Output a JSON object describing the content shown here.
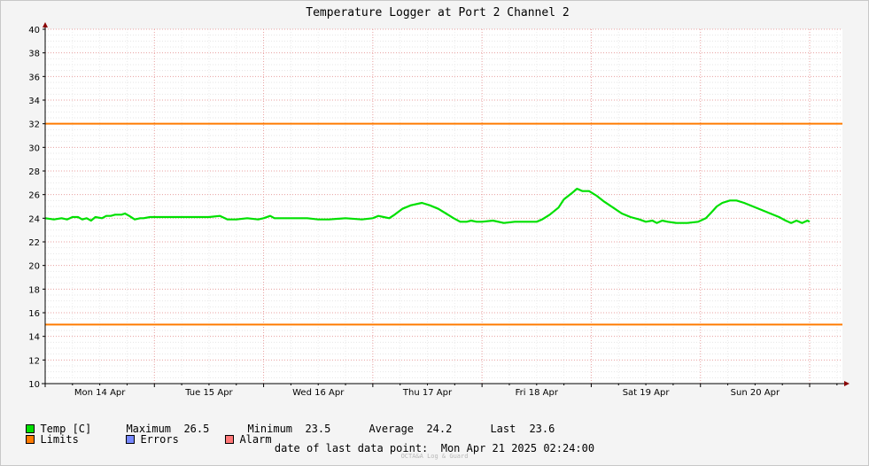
{
  "chart_data": {
    "type": "line",
    "title": "Temperature Logger at Port 2 Channel 2",
    "ylim": [
      10,
      40
    ],
    "yticks": [
      10,
      12,
      14,
      16,
      18,
      20,
      22,
      24,
      26,
      28,
      30,
      32,
      34,
      36,
      38,
      40
    ],
    "xlim": [
      0,
      7.3
    ],
    "day_labels": [
      "Mon 14 Apr",
      "Tue 15 Apr",
      "Wed 16 Apr",
      "Thu 17 Apr",
      "Fri 18 Apr",
      "Sat 19 Apr",
      "Sun 20 Apr"
    ],
    "series": [
      {
        "name": "Temp [C]",
        "color": "#00e000",
        "points": [
          [
            0.0,
            24.0
          ],
          [
            0.08,
            23.9
          ],
          [
            0.15,
            24.0
          ],
          [
            0.2,
            23.9
          ],
          [
            0.25,
            24.1
          ],
          [
            0.3,
            24.1
          ],
          [
            0.34,
            23.9
          ],
          [
            0.38,
            24.0
          ],
          [
            0.42,
            23.8
          ],
          [
            0.46,
            24.1
          ],
          [
            0.52,
            24.0
          ],
          [
            0.56,
            24.2
          ],
          [
            0.6,
            24.2
          ],
          [
            0.64,
            24.3
          ],
          [
            0.7,
            24.3
          ],
          [
            0.73,
            24.4
          ],
          [
            0.77,
            24.2
          ],
          [
            0.82,
            23.9
          ],
          [
            0.87,
            24.0
          ],
          [
            0.9,
            24.0
          ],
          [
            0.96,
            24.1
          ],
          [
            1.1,
            24.1
          ],
          [
            1.3,
            24.1
          ],
          [
            1.5,
            24.1
          ],
          [
            1.6,
            24.2
          ],
          [
            1.67,
            23.9
          ],
          [
            1.75,
            23.9
          ],
          [
            1.85,
            24.0
          ],
          [
            1.95,
            23.9
          ],
          [
            2.0,
            24.0
          ],
          [
            2.06,
            24.2
          ],
          [
            2.1,
            24.0
          ],
          [
            2.2,
            24.0
          ],
          [
            2.4,
            24.0
          ],
          [
            2.5,
            23.9
          ],
          [
            2.6,
            23.9
          ],
          [
            2.75,
            24.0
          ],
          [
            2.9,
            23.9
          ],
          [
            3.0,
            24.0
          ],
          [
            3.05,
            24.2
          ],
          [
            3.1,
            24.1
          ],
          [
            3.15,
            24.0
          ],
          [
            3.2,
            24.3
          ],
          [
            3.27,
            24.8
          ],
          [
            3.35,
            25.1
          ],
          [
            3.45,
            25.3
          ],
          [
            3.52,
            25.1
          ],
          [
            3.6,
            24.8
          ],
          [
            3.67,
            24.4
          ],
          [
            3.74,
            24.0
          ],
          [
            3.8,
            23.7
          ],
          [
            3.86,
            23.7
          ],
          [
            3.9,
            23.8
          ],
          [
            3.95,
            23.7
          ],
          [
            4.0,
            23.7
          ],
          [
            4.1,
            23.8
          ],
          [
            4.2,
            23.6
          ],
          [
            4.3,
            23.7
          ],
          [
            4.4,
            23.7
          ],
          [
            4.5,
            23.7
          ],
          [
            4.55,
            23.9
          ],
          [
            4.62,
            24.3
          ],
          [
            4.7,
            24.9
          ],
          [
            4.75,
            25.6
          ],
          [
            4.82,
            26.1
          ],
          [
            4.87,
            26.5
          ],
          [
            4.92,
            26.3
          ],
          [
            4.98,
            26.3
          ],
          [
            5.05,
            25.9
          ],
          [
            5.12,
            25.4
          ],
          [
            5.2,
            24.9
          ],
          [
            5.28,
            24.4
          ],
          [
            5.36,
            24.1
          ],
          [
            5.44,
            23.9
          ],
          [
            5.5,
            23.7
          ],
          [
            5.56,
            23.8
          ],
          [
            5.6,
            23.6
          ],
          [
            5.65,
            23.8
          ],
          [
            5.7,
            23.7
          ],
          [
            5.78,
            23.6
          ],
          [
            5.88,
            23.6
          ],
          [
            5.98,
            23.7
          ],
          [
            6.05,
            24.0
          ],
          [
            6.1,
            24.5
          ],
          [
            6.15,
            25.0
          ],
          [
            6.2,
            25.3
          ],
          [
            6.27,
            25.5
          ],
          [
            6.33,
            25.5
          ],
          [
            6.4,
            25.3
          ],
          [
            6.48,
            25.0
          ],
          [
            6.56,
            24.7
          ],
          [
            6.64,
            24.4
          ],
          [
            6.72,
            24.1
          ],
          [
            6.78,
            23.8
          ],
          [
            6.83,
            23.6
          ],
          [
            6.88,
            23.8
          ],
          [
            6.93,
            23.6
          ],
          [
            6.98,
            23.8
          ],
          [
            7.0,
            23.7
          ]
        ]
      },
      {
        "name": "Limits",
        "color": "#ff7b00",
        "hlines": [
          32,
          15
        ]
      }
    ]
  },
  "legend": {
    "temp": {
      "label": "Temp [C]",
      "color": "#00e000"
    },
    "limits": {
      "label": "Limits",
      "color": "#ff7b00"
    },
    "errors": {
      "label": "Errors",
      "color": "#7788ff"
    },
    "alarm": {
      "label": "Alarm",
      "color": "#ff7777"
    },
    "stats": {
      "maximum_label": "Maximum",
      "maximum_value": "26.5",
      "minimum_label": "Minimum",
      "minimum_value": "23.5",
      "average_label": "Average",
      "average_value": "24.2",
      "last_label": "Last",
      "last_value": "23.6"
    }
  },
  "footer": {
    "last_point_label": "date of last data point:",
    "last_point_value": "Mon Apr 21 2025 02:24:00",
    "watermark": "OCTA&A Log & Guard"
  }
}
